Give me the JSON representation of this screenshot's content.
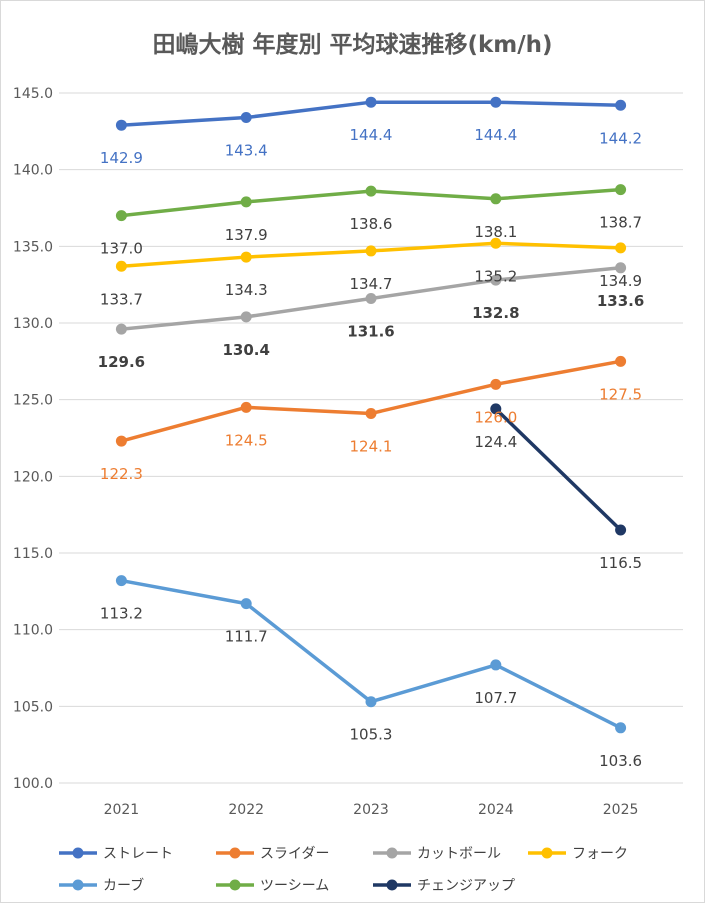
{
  "chart_data": {
    "type": "line",
    "title": "田嶋大樹 年度別 平均球速推移(km/h)",
    "xlabel": "",
    "ylabel": "",
    "categories": [
      "2021",
      "2022",
      "2023",
      "2024",
      "2025"
    ],
    "ylim": [
      100,
      145
    ],
    "yticks": [
      "100.0",
      "105.0",
      "110.0",
      "115.0",
      "120.0",
      "125.0",
      "130.0",
      "135.0",
      "140.0",
      "145.0"
    ],
    "grid": true,
    "legend": "bottom",
    "series": [
      {
        "name": "ストレート",
        "color": "#4472c4",
        "label_color": "#4472c4",
        "label_bold": false,
        "values": [
          142.9,
          143.4,
          144.4,
          144.4,
          144.2
        ],
        "labels": [
          "142.9",
          "143.4",
          "144.4",
          "144.4",
          "144.2"
        ]
      },
      {
        "name": "スライダー",
        "color": "#ed7d31",
        "label_color": "#ed7d31",
        "label_bold": false,
        "values": [
          122.3,
          124.5,
          124.1,
          126.0,
          127.5
        ],
        "labels": [
          "122.3",
          "124.5",
          "124.1",
          "126.0",
          "127.5"
        ]
      },
      {
        "name": "カットボール",
        "color": "#a5a5a5",
        "label_color": "#404040",
        "label_bold": true,
        "values": [
          129.6,
          130.4,
          131.6,
          132.8,
          133.6
        ],
        "labels": [
          "129.6",
          "130.4",
          "131.6",
          "132.8",
          "133.6"
        ]
      },
      {
        "name": "フォーク",
        "color": "#ffc000",
        "label_color": "#404040",
        "label_bold": false,
        "values": [
          133.7,
          134.3,
          134.7,
          135.2,
          134.9
        ],
        "labels": [
          "133.7",
          "134.3",
          "134.7",
          "135.2",
          "134.9"
        ]
      },
      {
        "name": "カーブ",
        "color": "#5b9bd5",
        "label_color": "#404040",
        "label_bold": false,
        "values": [
          113.2,
          111.7,
          105.3,
          107.7,
          103.6
        ],
        "labels": [
          "113.2",
          "111.7",
          "105.3",
          "107.7",
          "103.6"
        ]
      },
      {
        "name": "ツーシーム",
        "color": "#70ad47",
        "label_color": "#404040",
        "label_bold": false,
        "values": [
          137.0,
          137.9,
          138.6,
          138.1,
          138.7
        ],
        "labels": [
          "137.0",
          "137.9",
          "138.6",
          "138.1",
          "138.7"
        ]
      },
      {
        "name": "チェンジアップ",
        "color": "#1f3864",
        "label_color": "#404040",
        "label_bold": false,
        "values": [
          null,
          null,
          null,
          124.4,
          116.5
        ],
        "labels": [
          "",
          "",
          "",
          "124.4",
          "116.5"
        ]
      }
    ]
  }
}
